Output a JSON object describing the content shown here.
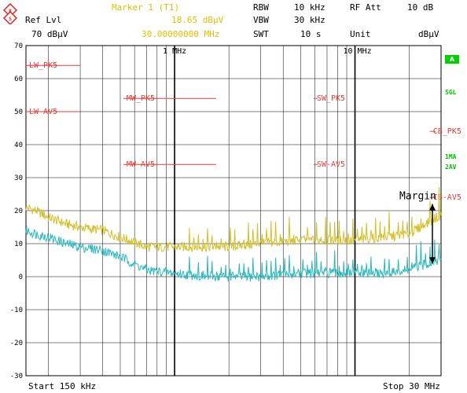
{
  "header": {
    "marker_title": "Marker 1 (T1)",
    "ref_lvl_label": "Ref Lvl",
    "ref_lvl_value": "70 dBµV",
    "marker_level": "18.65 dBµV",
    "marker_freq": "30.00000000 MHz",
    "rbw_label": "RBW",
    "rbw_value": "10 kHz",
    "vbw_label": "VBW",
    "vbw_value": "30 kHz",
    "swt_label": "SWT",
    "swt_value": "10 s",
    "rfatt_label": "RF Att",
    "rfatt_value": "10 dB",
    "unit_label": "Unit",
    "unit_value": "dBµV"
  },
  "side": {
    "a_badge": "A",
    "sgl": "SGL",
    "line1": "1MA",
    "line2": "2AV"
  },
  "footer": {
    "start": "Start 150 kHz",
    "stop": "Stop 30 MHz"
  },
  "chart_data": {
    "type": "line",
    "xscale": "log",
    "xlim_hz": [
      150000,
      30000000
    ],
    "ylim": [
      -30,
      70
    ],
    "y_ticks": [
      "70",
      "60",
      "50",
      "40",
      "30",
      "20",
      "10",
      "0",
      "-10",
      "-20",
      "-30"
    ],
    "x_tick_labels": [
      {
        "freq_hz": 1000000,
        "label": "1 MHz"
      },
      {
        "freq_hz": 10000000,
        "label": "10 MHz"
      }
    ],
    "colors": {
      "peak": "#d2bf2a",
      "avg": "#28b8bc",
      "limit": "#e53a3a",
      "grid": "#000000"
    },
    "limit_lines": [
      {
        "name": "LW_PK5",
        "level": 64,
        "x_mhz": [
          0.15,
          0.3
        ]
      },
      {
        "name": "LW-AV5",
        "level": 50,
        "x_mhz": [
          0.15,
          0.3
        ]
      },
      {
        "name": "MW_PK5",
        "level": 54,
        "x_mhz": [
          0.52,
          1.7
        ]
      },
      {
        "name": "MW-AV5",
        "level": 34,
        "x_mhz": [
          0.52,
          1.7
        ]
      },
      {
        "name": "SW_PK5",
        "level": 54,
        "x_mhz": [
          5.9,
          6.2
        ]
      },
      {
        "name": "SW-AV5",
        "level": 34,
        "x_mhz": [
          5.9,
          6.2
        ]
      },
      {
        "name": "CB_PK5",
        "level": 44,
        "x_mhz": [
          26,
          28
        ]
      },
      {
        "name": "CB-AV5",
        "level": 24,
        "x_mhz": [
          26,
          28
        ]
      }
    ],
    "series": [
      {
        "name": "1MA",
        "x_mhz": [
          0.15,
          0.17,
          0.2,
          0.25,
          0.3,
          0.4,
          0.5,
          0.7,
          1.0,
          1.5,
          2.0,
          3.0,
          5.0,
          7.0,
          10,
          15,
          20,
          30
        ],
        "values": [
          21,
          20,
          18,
          16,
          15,
          14,
          12,
          9,
          9,
          9,
          9,
          10,
          11,
          11,
          11,
          12,
          13,
          18.65
        ]
      },
      {
        "name": "2AV",
        "x_mhz": [
          0.15,
          0.17,
          0.2,
          0.25,
          0.3,
          0.4,
          0.5,
          0.7,
          1.0,
          1.5,
          2.0,
          3.0,
          5.0,
          7.0,
          10,
          15,
          20,
          30
        ],
        "values": [
          14,
          13,
          12,
          10,
          9,
          8,
          6,
          2,
          1,
          0,
          0,
          0,
          1,
          1,
          1,
          1,
          2,
          5.5
        ]
      }
    ],
    "annotation": "Margin"
  }
}
